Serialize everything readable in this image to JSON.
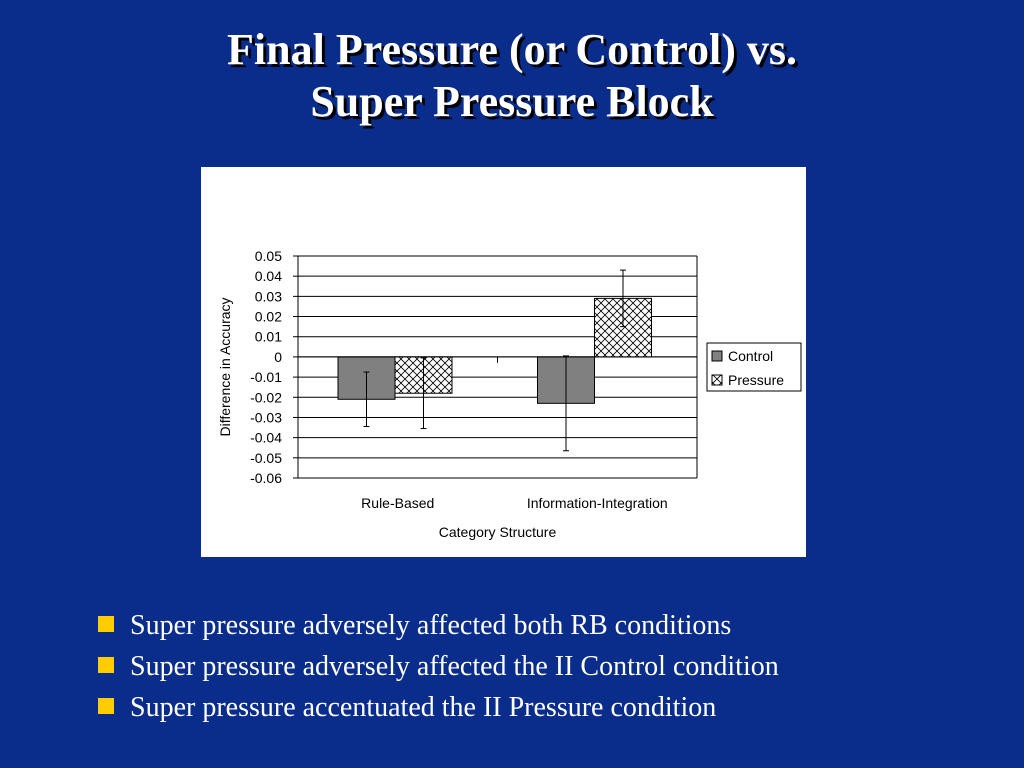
{
  "title": {
    "line1": "Final Pressure (or Control) vs.",
    "line2": "Super Pressure Block"
  },
  "colors": {
    "background": "#0A2D8C",
    "bullet": "#FFCC00",
    "control_bar": "#808080"
  },
  "bullets": [
    "Super pressure adversely affected both RB conditions",
    "Super pressure adversely affected the II Control condition",
    "Super pressure accentuated the II Pressure condition"
  ],
  "chart_data": {
    "type": "bar",
    "categories": [
      "Rule-Based",
      "Information-Integration"
    ],
    "series": [
      {
        "name": "Control",
        "values": [
          -0.021,
          -0.023
        ],
        "error": [
          0.0135,
          0.0235
        ]
      },
      {
        "name": "Pressure",
        "values": [
          -0.018,
          0.029
        ],
        "error": [
          0.0175,
          0.014
        ]
      }
    ],
    "xlabel": "Category Structure",
    "ylabel": "Difference in Accuracy",
    "ylim": [
      -0.06,
      0.05
    ],
    "yticks": [
      "0.05",
      "0.04",
      "0.03",
      "0.02",
      "0.01",
      "0",
      "-0.01",
      "-0.02",
      "-0.03",
      "-0.04",
      "-0.05",
      "-0.06"
    ],
    "grid": true,
    "legend": "right"
  }
}
